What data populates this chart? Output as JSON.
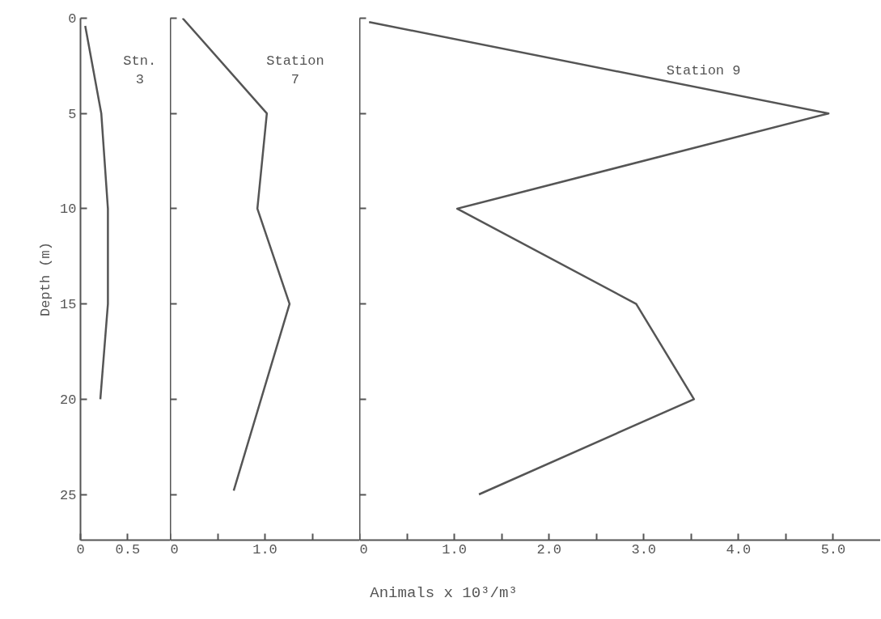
{
  "chart_data": [
    {
      "type": "line",
      "ylabel": "Depth (m)",
      "x": [
        0.4,
        5,
        10,
        15,
        20
      ],
      "orientation": "horizontal",
      "xlim": [
        0,
        0.95
      ],
      "xticks": [
        0,
        0.5
      ],
      "ylim": [
        27.4,
        0
      ],
      "yticks": [
        0,
        5,
        10,
        15,
        20,
        25
      ],
      "grid": false,
      "marker": "none",
      "series": [
        {
          "name": "Stn. 3",
          "color": "#555555",
          "values": [
            0.05,
            0.22,
            0.29,
            0.29,
            0.21
          ]
        }
      ]
    },
    {
      "type": "line",
      "x": [
        0,
        5,
        10,
        15,
        24.8
      ],
      "orientation": "horizontal",
      "xlim": [
        0,
        2.0
      ],
      "xticks": [
        0,
        {
          "value": 0.5,
          "label": null
        },
        {
          "value": 1.0,
          "label": "1.0"
        },
        {
          "value": 1.5,
          "label": null
        }
      ],
      "ylim": [
        27.4,
        0
      ],
      "yticks": [
        0,
        5,
        10,
        15,
        20,
        25
      ],
      "tick_labels": "x",
      "grid": false,
      "marker": "none",
      "series": [
        {
          "name": "Station 7",
          "color": "#555555",
          "values": [
            0.13,
            1.02,
            0.92,
            1.26,
            0.67
          ]
        }
      ]
    },
    {
      "type": "line",
      "xlabel": "Animals x 10³/m³",
      "x": [
        0.2,
        5,
        10,
        15,
        20,
        25
      ],
      "orientation": "horizontal",
      "xlim": [
        0,
        5.5
      ],
      "xticks": [
        0,
        {
          "value": 0.5,
          "label": null
        },
        {
          "value": 1.0,
          "label": "1.0"
        },
        {
          "value": 1.5,
          "label": null
        },
        {
          "value": 2.0,
          "label": "2.0"
        },
        {
          "value": 2.5,
          "label": null
        },
        {
          "value": 3.0,
          "label": "3.0"
        },
        {
          "value": 3.5,
          "label": null
        },
        {
          "value": 4.0,
          "label": "4.0"
        },
        {
          "value": 4.5,
          "label": null
        },
        {
          "value": 5.0,
          "label": "5.0"
        }
      ],
      "ylim": [
        27.4,
        0
      ],
      "yticks": [
        0,
        5,
        10,
        15,
        20,
        25
      ],
      "tick_labels": "x",
      "grid": false,
      "marker": "none",
      "series": [
        {
          "name": "Station 9",
          "color": "#555555",
          "values": [
            0.1,
            4.95,
            1.03,
            2.92,
            3.53,
            1.26
          ]
        }
      ]
    }
  ]
}
